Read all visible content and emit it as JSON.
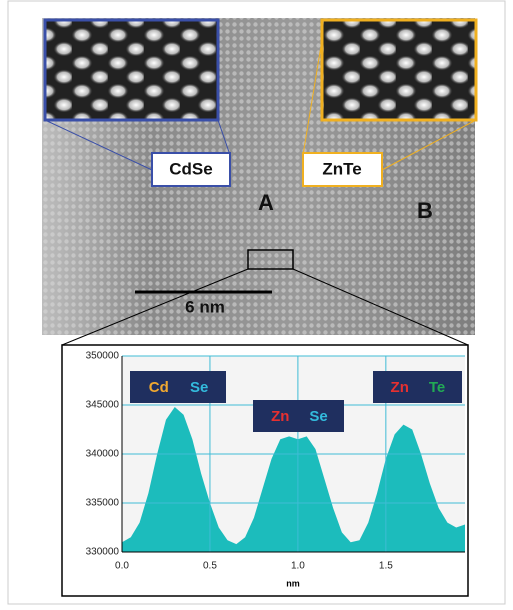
{
  "image": {
    "labels": [
      "CdSe",
      "ZnTe"
    ],
    "regions": [
      "A",
      "B"
    ],
    "scale_bar": "6 nm"
  },
  "chart_data": {
    "type": "area",
    "x_label": "nm",
    "x": [
      0,
      0.05,
      0.1,
      0.15,
      0.2,
      0.25,
      0.3,
      0.35,
      0.4,
      0.45,
      0.5,
      0.55,
      0.6,
      0.65,
      0.7,
      0.75,
      0.8,
      0.85,
      0.9,
      0.95,
      1.0,
      1.05,
      1.1,
      1.15,
      1.2,
      1.25,
      1.3,
      1.35,
      1.4,
      1.45,
      1.5,
      1.55,
      1.6,
      1.65,
      1.7,
      1.75,
      1.8,
      1.85,
      1.9,
      1.95
    ],
    "series": [
      {
        "color": "#1cbcbc",
        "values": [
          331000,
          331500,
          333000,
          336000,
          340000,
          343500,
          344800,
          344000,
          341500,
          338000,
          335000,
          332500,
          331200,
          330800,
          331500,
          333500,
          336500,
          339500,
          341500,
          341800,
          341500,
          341800,
          340500,
          337500,
          334500,
          332000,
          331000,
          331200,
          333000,
          336000,
          339500,
          342000,
          343000,
          342500,
          340000,
          337000,
          334500,
          333000,
          332500,
          332800
        ]
      }
    ],
    "xlim": [
      0,
      1.95
    ],
    "ylim": [
      330000,
      350000
    ],
    "xticks": [
      {
        "value": 0,
        "label": "0.0"
      },
      0.5,
      {
        "value": 1,
        "label": "1.0"
      },
      1.5
    ],
    "yticks": [
      330000,
      335000,
      340000,
      345000,
      350000
    ],
    "grid": true,
    "grid_color": "#3fbcd6",
    "annotations": [
      {
        "parts": [
          {
            "text": "Cd",
            "color": "#f0a830"
          },
          {
            "text": "Se",
            "color": "#33bbdd"
          }
        ]
      },
      {
        "parts": [
          {
            "text": "Zn",
            "color": "#e63030"
          },
          {
            "text": "Se",
            "color": "#33bbdd"
          }
        ]
      },
      {
        "parts": [
          {
            "text": "Zn",
            "color": "#e63030"
          },
          {
            "text": "Te",
            "color": "#22aa55"
          }
        ]
      }
    ]
  }
}
